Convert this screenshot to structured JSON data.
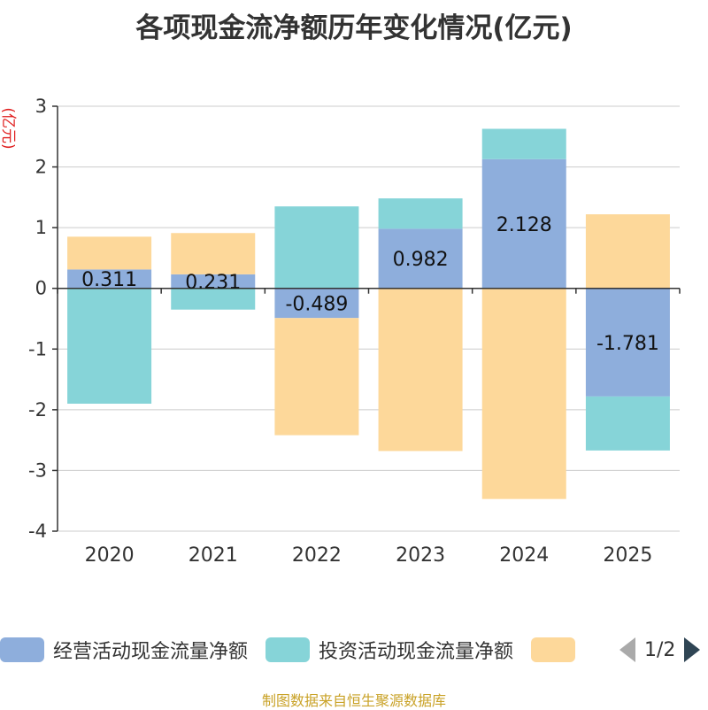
{
  "title": "各项现金流净额历年变化情况(亿元)",
  "source": "制图数据来自恒生聚源数据库",
  "legend": {
    "items": [
      {
        "label": "经营活动现金流量净额",
        "color": "#8eaedc"
      },
      {
        "label": "投资活动现金流量净额",
        "color": "#86d4d8"
      },
      {
        "label": "",
        "color": "#fdd89a"
      }
    ],
    "page": "1/2"
  },
  "chart_data": {
    "type": "bar",
    "stacked": true,
    "title": "各项现金流净额历年变化情况(亿元)",
    "ylabel": "(亿元)",
    "xlabel": "",
    "ylim": [
      -4,
      3
    ],
    "yticks": [
      3,
      2,
      1,
      0,
      -1,
      -2,
      -3,
      -4
    ],
    "grid": true,
    "categories": [
      "2020",
      "2021",
      "2022",
      "2023",
      "2024",
      "2025"
    ],
    "series": [
      {
        "name": "经营活动现金流量净额",
        "color": "#8eaedc",
        "values": [
          0.311,
          0.231,
          -0.489,
          0.982,
          2.128,
          -1.781
        ],
        "labels": [
          "0.311",
          "0.231",
          "-0.489",
          "0.982",
          "2.128",
          "-1.781"
        ]
      },
      {
        "name": "投资活动现金流量净额",
        "color": "#86d4d8",
        "values": [
          -1.9,
          -0.35,
          1.35,
          0.5,
          0.5,
          -0.89
        ]
      },
      {
        "name": "",
        "color": "#fdd89a",
        "values": [
          0.54,
          0.68,
          -1.93,
          -2.68,
          -3.47,
          1.22
        ]
      }
    ]
  }
}
